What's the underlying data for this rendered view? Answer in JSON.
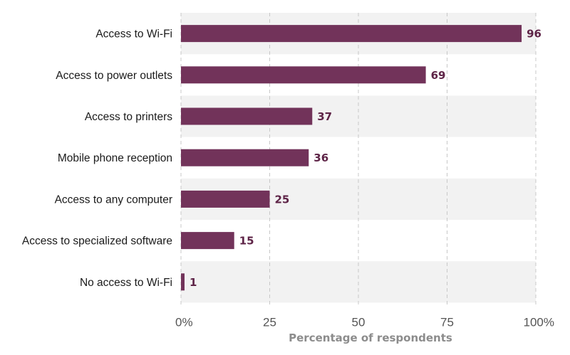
{
  "chart_data": {
    "type": "bar",
    "orientation": "horizontal",
    "categories": [
      "Access to Wi-Fi",
      "Access to power outlets",
      "Access to printers",
      "Mobile phone reception",
      "Access to any computer",
      "Access to specialized software",
      "No access to Wi-Fi"
    ],
    "values": [
      96,
      69,
      37,
      36,
      25,
      15,
      1
    ],
    "xlabel": "Percentage of respondents",
    "ylabel": "",
    "xlim": [
      0,
      100
    ],
    "x_ticks": [
      "0%",
      "25",
      "50",
      "75",
      "100%"
    ],
    "grid": "vertical dashed",
    "data_labels": true,
    "colors": {
      "bar": "#72335a",
      "value_label": "#5e2447",
      "band": "#f2f2f2",
      "grid": "#c8c8c8",
      "axis_title": "#8c8c8c"
    }
  }
}
